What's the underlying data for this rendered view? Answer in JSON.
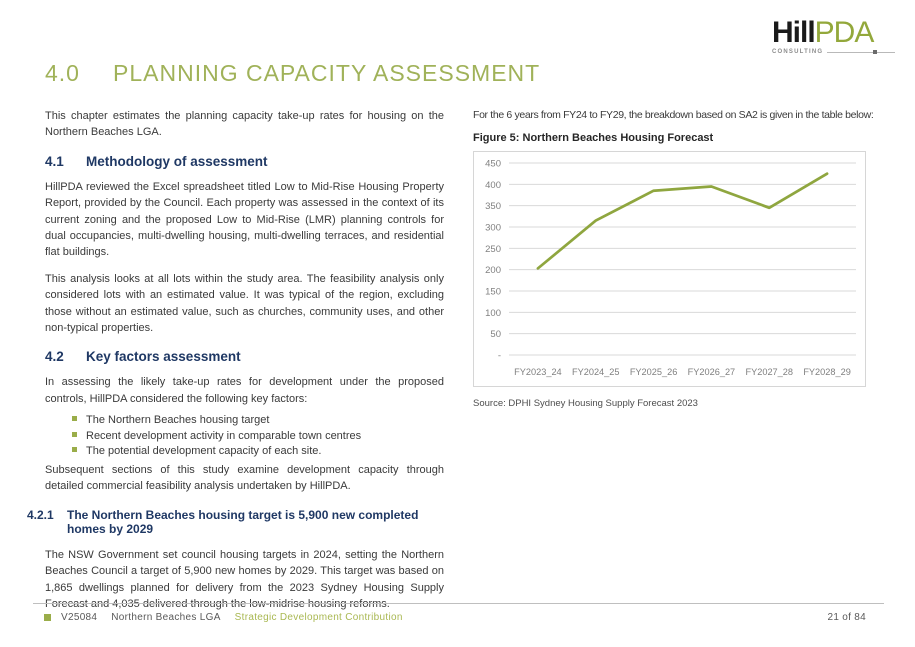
{
  "logo": {
    "hill": "Hill",
    "pda": "PDA",
    "tagline": "CONSULTING"
  },
  "title": {
    "number": "4.0",
    "text": "PLANNING CAPACITY ASSESSMENT"
  },
  "left_column": {
    "intro": "This chapter estimates the planning capacity take-up rates for housing on the Northern Beaches LGA.",
    "section_41": {
      "number": "4.1",
      "title": "Methodology of assessment",
      "para1": "HillPDA reviewed the Excel spreadsheet titled Low to Mid-Rise Housing Property Report, provided by the Council. Each property was assessed in the context of its current zoning and the proposed Low to Mid-Rise (LMR) planning controls for dual occupancies, multi-dwelling housing, multi-dwelling terraces, and residential flat buildings.",
      "para2": "This analysis looks at all lots within the study area. The feasibility analysis only considered lots with an estimated value. It was typical of the region, excluding those without an estimated value, such as churches, community uses, and other non-typical properties."
    },
    "section_42": {
      "number": "4.2",
      "title": "Key factors assessment",
      "para1": "In assessing the likely take-up rates for development under the proposed controls, HillPDA considered the following key factors:",
      "bullets": [
        "The Northern Beaches housing target",
        "Recent development activity in comparable town centres",
        "The potential development capacity of each site."
      ],
      "para2": "Subsequent sections of this study examine development capacity through detailed commercial feasibility analysis undertaken by HillPDA."
    },
    "section_421": {
      "number": "4.2.1",
      "title": "The Northern Beaches housing target is 5,900 new completed homes by 2029",
      "para1": "The NSW Government set council housing targets in 2024, setting the Northern Beaches Council a target of 5,900 new homes by 2029. This target was based on 1,865 dwellings planned for delivery from the 2023 Sydney Housing Supply Forecast and 4,035 delivered through the low-midrise housing reforms."
    }
  },
  "right_column": {
    "intro": "For the 6 years from FY24 to FY29, the breakdown based on SA2 is given in the table below:",
    "figure_caption": "Figure 5: Northern Beaches Housing Forecast",
    "source": "Source: DPHI Sydney Housing Supply Forecast 2023"
  },
  "chart_data": {
    "type": "line",
    "title": "Northern Beaches Housing Forecast",
    "categories": [
      "FY2023_24",
      "FY2024_25",
      "FY2025_26",
      "FY2026_27",
      "FY2027_28",
      "FY2028_29"
    ],
    "values": [
      203,
      315,
      385,
      395,
      345,
      425
    ],
    "xlabel": "",
    "ylabel": "",
    "ylim": [
      0,
      450
    ],
    "ytick_step": 50,
    "ytick_labels": [
      "-",
      "50",
      "100",
      "150",
      "200",
      "250",
      "300",
      "350",
      "400",
      "450"
    ],
    "grid": true,
    "legend": "none",
    "line_color": "#8fa63f"
  },
  "footer": {
    "project_code": "V25084",
    "client": "Northern Beaches LGA",
    "report_title": "Strategic Development Contribution",
    "page_indicator": "21 of 84"
  },
  "colors": {
    "accent_olive": "#9aad49",
    "heading_navy": "#1f3864",
    "body_text": "#3a3a3a",
    "axis_gray": "#808080",
    "grid_gray": "#d9d9d9",
    "chart_line": "#8fa63f"
  }
}
